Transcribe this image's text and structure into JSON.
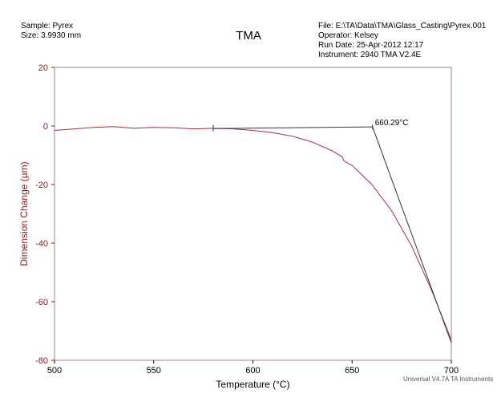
{
  "header": {
    "sample": "Sample: Pyrex",
    "size": "Size:  3.9930 mm",
    "file": "File: E:\\TA\\Data\\TMA\\Glass_Casting\\Pyrex.001",
    "operator": "Operator: Kelsey",
    "run_date": "Run Date: 25-Apr-2012 12:17",
    "instrument": "Instrument: 2940 TMA V2.4E",
    "footer": "Universal V4.7A TA Instruments"
  },
  "colors": {
    "curve": "#a0303a",
    "axis": "#8b1a1a",
    "tangent": "#333333",
    "frame": "#a08080"
  },
  "chart_data": {
    "type": "line",
    "title": "TMA",
    "xlabel": "Temperature (°C)",
    "ylabel": "Dimension Change (µm)",
    "xlim": [
      500,
      700
    ],
    "ylim": [
      -80,
      20
    ],
    "xticks": [
      500,
      550,
      600,
      650,
      700
    ],
    "yticks": [
      20,
      0,
      -20,
      -40,
      -60,
      -80
    ],
    "series": [
      {
        "name": "Dimension Change",
        "x": [
          500,
          510,
          520,
          530,
          540,
          550,
          560,
          570,
          580,
          590,
          600,
          610,
          620,
          630,
          640,
          645,
          646,
          650,
          660,
          670,
          680,
          690,
          700
        ],
        "y": [
          -1.5,
          -1.0,
          -0.5,
          -0.2,
          -0.8,
          -0.5,
          -0.6,
          -1.0,
          -0.8,
          -1.0,
          -1.5,
          -2.3,
          -3.5,
          -5.5,
          -8.5,
          -10.5,
          -12,
          -13.5,
          -20,
          -29,
          -41,
          -56,
          -73
        ]
      },
      {
        "name": "Baseline tangent",
        "x": [
          580,
          660.29
        ],
        "y": [
          -0.9,
          -0.3
        ]
      },
      {
        "name": "Slope tangent",
        "x": [
          660.29,
          700
        ],
        "y": [
          -0.3,
          -74
        ]
      }
    ],
    "annotations": [
      {
        "text": "660.29°C",
        "x": 660.29,
        "y": -0.3
      }
    ]
  }
}
